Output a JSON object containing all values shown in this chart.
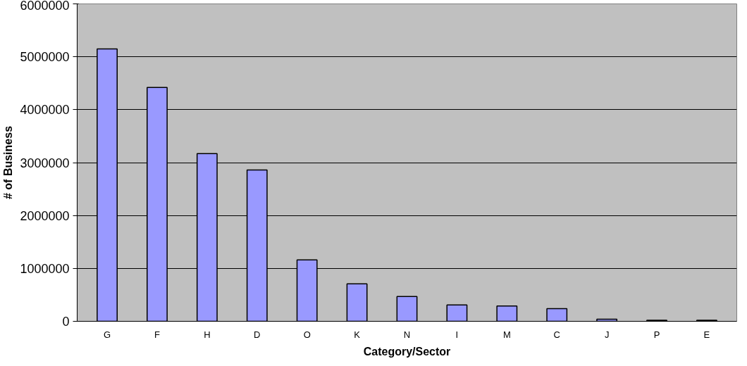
{
  "chart_data": {
    "type": "bar",
    "xlabel": "Category/Sector",
    "ylabel": "# of Business",
    "categories": [
      "G",
      "F",
      "H",
      "D",
      "O",
      "K",
      "N",
      "I",
      "M",
      "C",
      "J",
      "P",
      "E"
    ],
    "values": [
      5150000,
      4420000,
      3170000,
      2860000,
      1160000,
      710000,
      470000,
      310000,
      290000,
      240000,
      40000,
      20000,
      20000
    ],
    "color": "#9999ff",
    "ylim": [
      0,
      6000000
    ],
    "yticks": [
      0,
      1000000,
      2000000,
      3000000,
      4000000,
      5000000,
      6000000
    ],
    "grid": "y"
  }
}
